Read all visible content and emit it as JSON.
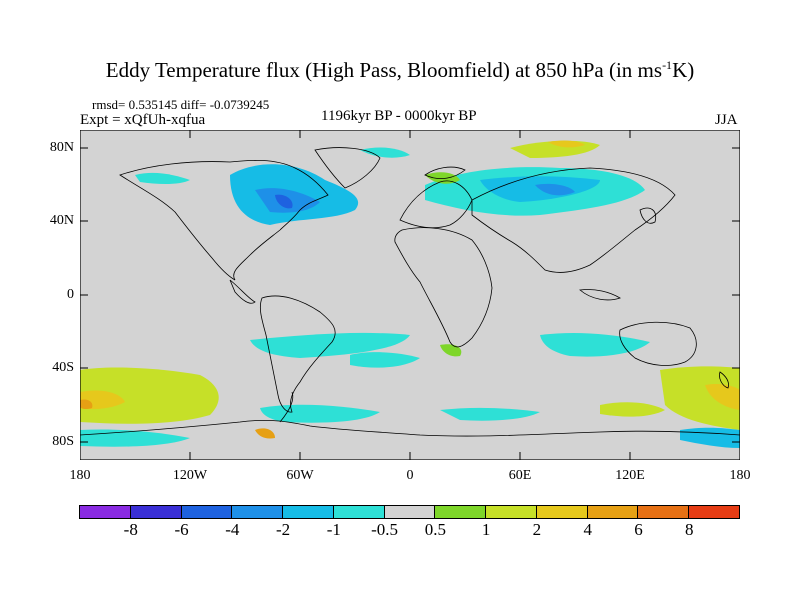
{
  "title": {
    "main": "Eddy Temperature flux (High Pass, Bloomfield) at 850 hPa (in ms",
    "sup": "-1",
    "tail": "K)"
  },
  "stats": "rmsd= 0.535145 diff= -0.0739245",
  "expt": "Expt = xQfUh-xqfua",
  "period": "1196kyr BP - 0000kyr BP",
  "season": "JJA",
  "lat_labels": [
    "80N",
    "40N",
    "0",
    "40S",
    "80S"
  ],
  "lon_labels": [
    "180",
    "120W",
    "60W",
    "0",
    "60E",
    "120E",
    "180"
  ],
  "colorbar": {
    "colors": [
      "#8a2be2",
      "#3a2fd6",
      "#1e62e0",
      "#1e90e8",
      "#16bce6",
      "#2ee0d6",
      "#d3d3d3",
      "#7ed62a",
      "#c6e028",
      "#e6c81c",
      "#e6a014",
      "#e67014",
      "#e63c14"
    ],
    "labels": [
      "-8",
      "-6",
      "-4",
      "-2",
      "-1",
      "-0.5",
      "0.5",
      "1",
      "2",
      "4",
      "6",
      "8"
    ]
  },
  "legend_colors": {
    "ocean_land_neutral": "#d3d3d3",
    "coast": "#000000"
  }
}
